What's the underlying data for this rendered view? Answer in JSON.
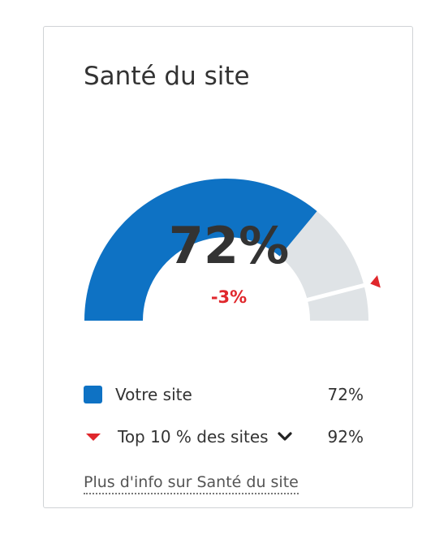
{
  "widget": {
    "title": "Santé du site",
    "gauge": {
      "value_label": "72%",
      "delta_label": "-3%",
      "value_fraction": 0.72,
      "benchmark_fraction": 0.92,
      "colors": {
        "fill": "#0e72c4",
        "track": "#dfe3e6",
        "marker": "#e0272c",
        "delta": "#e0272c"
      }
    },
    "legend": [
      {
        "label": "Votre site",
        "value": "72%",
        "icon": "blue-square-icon"
      },
      {
        "label": "Top 10 % des sites",
        "value": "92%",
        "icon": "red-triangle-down-icon"
      }
    ],
    "more_link": "Plus d'info sur Santé du site"
  }
}
